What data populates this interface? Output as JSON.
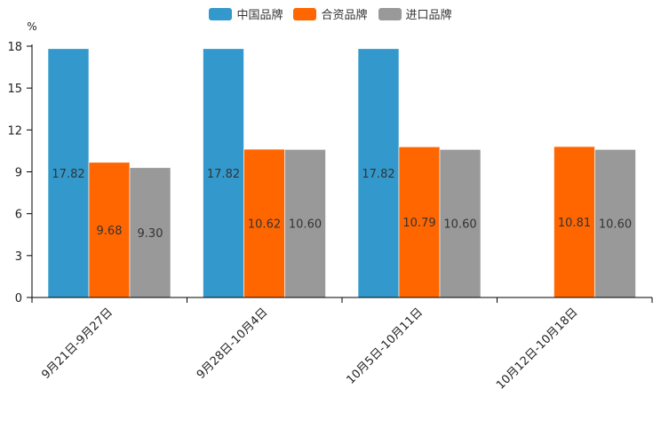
{
  "chart_data": {
    "type": "bar",
    "ylabel": "%",
    "ylim": [
      0,
      18
    ],
    "yticks": [
      0,
      3,
      6,
      9,
      12,
      15,
      18
    ],
    "categories": [
      "9月21日-9月27日",
      "9月28日-10月4日",
      "10月5日-10月11日",
      "10月12日-10月18日"
    ],
    "series": [
      {
        "name": "中国品牌",
        "color": "#3399cc",
        "values": [
          17.82,
          17.82,
          17.82,
          null
        ]
      },
      {
        "name": "合资品牌",
        "color": "#ff6600",
        "values": [
          9.68,
          10.62,
          10.79,
          10.81
        ]
      },
      {
        "name": "进口品牌",
        "color": "#999999",
        "values": [
          9.3,
          10.6,
          10.6,
          10.6
        ]
      }
    ],
    "data_labels": [
      [
        "17.82",
        "17.82",
        "17.82",
        ""
      ],
      [
        "9.68",
        "10.62",
        "10.79",
        "10.81"
      ],
      [
        "9.30",
        "10.60",
        "10.60",
        "10.60"
      ]
    ],
    "legend_position": "top-center",
    "grid": false
  }
}
